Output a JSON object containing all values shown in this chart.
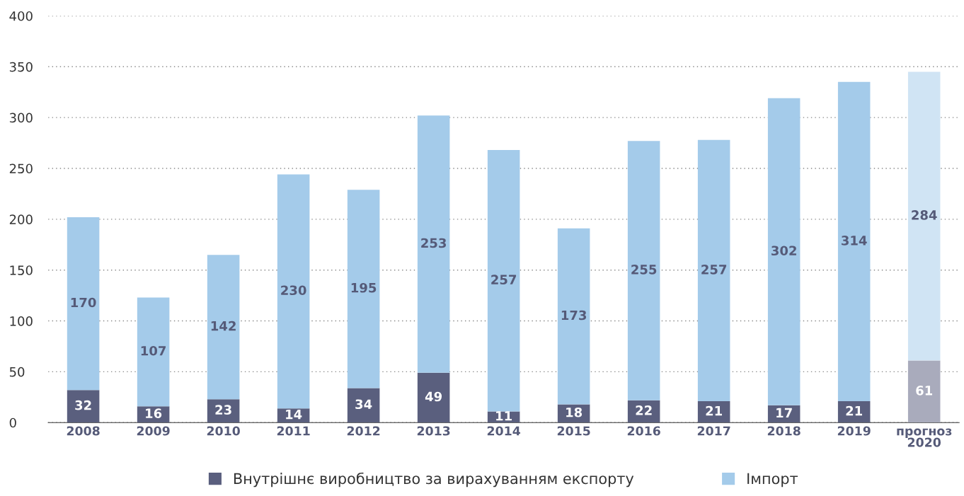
{
  "chart_data": {
    "type": "bar",
    "stacked": true,
    "data_labels": true,
    "grid": "y",
    "legend": "bottom",
    "categories": [
      "2008",
      "2009",
      "2010",
      "2011",
      "2012",
      "2013",
      "2014",
      "2015",
      "2016",
      "2017",
      "2018",
      "2019",
      "прогноз\n2020"
    ],
    "ylim": [
      0,
      400
    ],
    "yticks": [
      0,
      50,
      100,
      150,
      200,
      250,
      300,
      350,
      400
    ],
    "series": [
      {
        "name": "Внутрішнє виробництво за вирахуванням експорту",
        "color": "#5a5f7e",
        "colors": [
          "#5a5f7e",
          "#5a5f7e",
          "#5a5f7e",
          "#5a5f7e",
          "#5a5f7e",
          "#5a5f7e",
          "#5a5f7e",
          "#5a5f7e",
          "#5a5f7e",
          "#5a5f7e",
          "#5a5f7e",
          "#5a5f7e",
          "#a9abbc"
        ],
        "values": [
          32,
          16,
          23,
          14,
          34,
          49,
          11,
          18,
          22,
          21,
          17,
          21,
          61
        ]
      },
      {
        "name": "Імпорт",
        "color": "#a4cbea",
        "colors": [
          "#a4cbea",
          "#a4cbea",
          "#a4cbea",
          "#a4cbea",
          "#a4cbea",
          "#a4cbea",
          "#a4cbea",
          "#a4cbea",
          "#a4cbea",
          "#a4cbea",
          "#a4cbea",
          "#a4cbea",
          "#d0e4f4"
        ],
        "values": [
          170,
          107,
          142,
          230,
          195,
          253,
          257,
          173,
          255,
          257,
          302,
          314,
          284
        ]
      }
    ]
  }
}
